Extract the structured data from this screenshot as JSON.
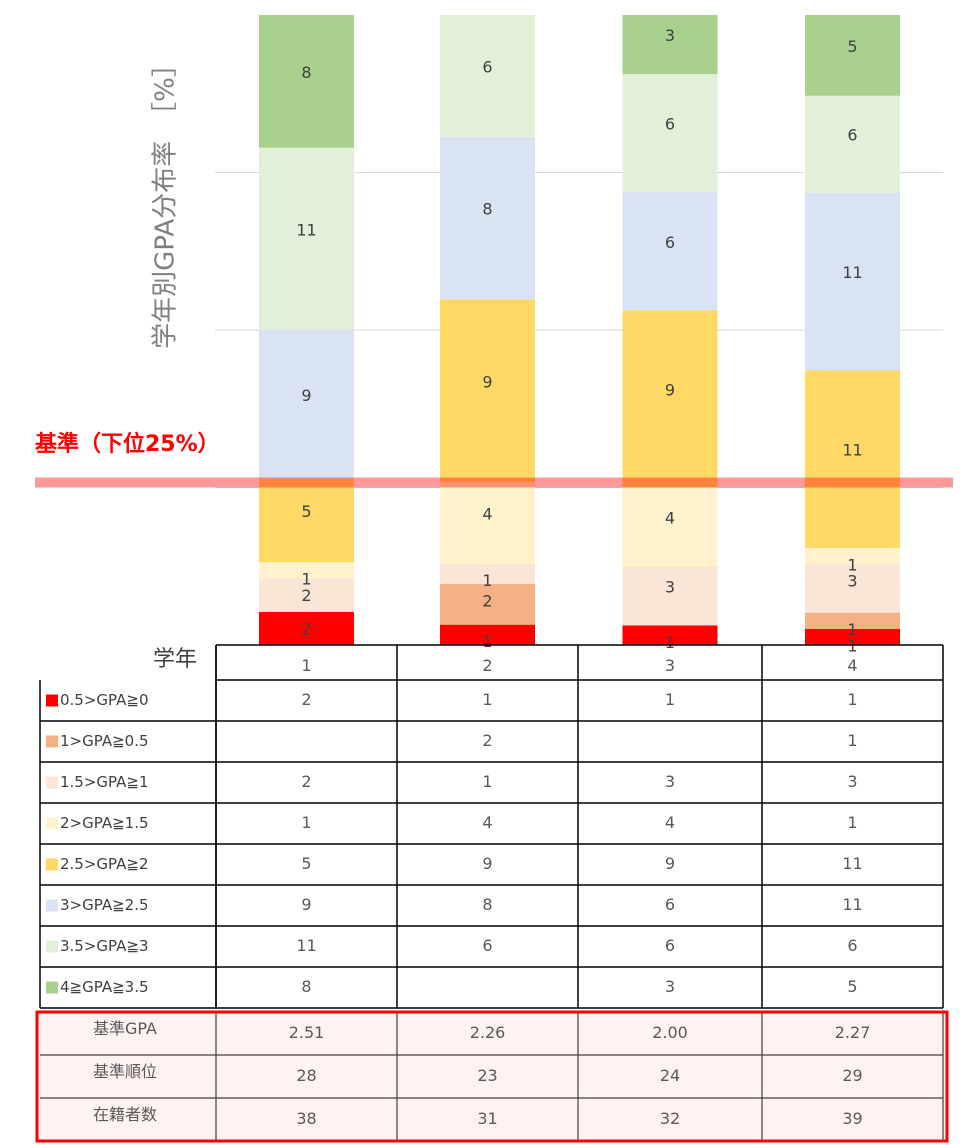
{
  "chart_data": {
    "type": "stacked_bar",
    "stacking": "percent",
    "y_label": "学年別GPA分布率　［%］",
    "x_label": "学年",
    "categories": [
      "1",
      "2",
      "3",
      "4"
    ],
    "ylim": [
      0,
      100
    ],
    "yticks": [
      25,
      50,
      75
    ],
    "grid": true,
    "reference": {
      "value": 25,
      "label": "基準（下位25%）",
      "color": "#ff0000"
    },
    "series": [
      {
        "name": "0.5>GPA≧0",
        "color": "#ff0000",
        "values": [
          2,
          1,
          1,
          1
        ]
      },
      {
        "name": "1>GPA≧0.5",
        "color": "#f4b183",
        "values": [
          null,
          2,
          null,
          1
        ]
      },
      {
        "name": "1.5>GPA≧1",
        "color": "#fbe5d6",
        "values": [
          2,
          1,
          3,
          3
        ]
      },
      {
        "name": "2>GPA≧1.5",
        "color": "#fff2cc",
        "values": [
          1,
          4,
          4,
          1
        ]
      },
      {
        "name": "2.5>GPA≧2",
        "color": "#ffd966",
        "values": [
          5,
          9,
          9,
          11
        ]
      },
      {
        "name": "3>GPA≧2.5",
        "color": "#dae3f3",
        "values": [
          9,
          8,
          6,
          11
        ]
      },
      {
        "name": "3.5>GPA≧3",
        "color": "#e2f0d9",
        "values": [
          11,
          6,
          6,
          6
        ]
      },
      {
        "name": "4≧GPA≧3.5",
        "color": "#a9d18e",
        "values": [
          8,
          null,
          3,
          5
        ]
      }
    ],
    "summary_rows": [
      {
        "name": "基準GPA",
        "values": [
          2.51,
          2.26,
          2,
          2.27
        ],
        "value_labels": [
          "2.51",
          "2.26",
          "2.00",
          "2.27"
        ]
      },
      {
        "name": "基準順位",
        "values": [
          28,
          23,
          24,
          29
        ]
      },
      {
        "name": "在籍者数",
        "values": [
          38,
          31,
          32,
          39
        ]
      }
    ]
  }
}
